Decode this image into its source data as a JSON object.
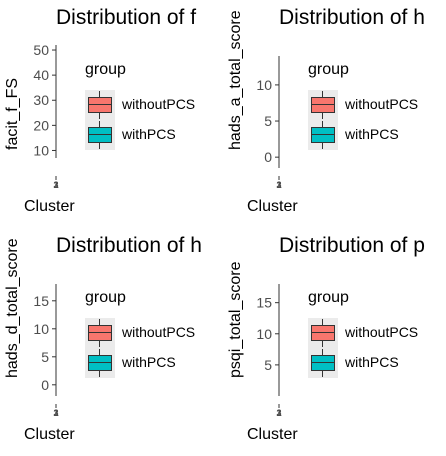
{
  "chart_data": [
    {
      "type": "boxplot",
      "title": "Distribution of f",
      "xlabel": "Cluster",
      "ylabel": "facit_f_FS",
      "ylim": [
        7,
        52
      ],
      "yticks": [
        10,
        20,
        30,
        40,
        50
      ],
      "categories": [
        "1",
        "2",
        "3"
      ],
      "legend": {
        "title": "group",
        "entries": [
          "withoutPCS",
          "withPCS"
        ],
        "position": "right"
      },
      "grid": false
    },
    {
      "type": "boxplot",
      "title": "Distribution of h",
      "xlabel": "Cluster",
      "ylabel": "hads_a_total_score",
      "ylim": [
        -1.5,
        14
      ],
      "yticks": [
        0,
        5,
        10
      ],
      "categories": [
        "1",
        "2",
        "3"
      ],
      "legend": {
        "title": "group",
        "entries": [
          "withoutPCS",
          "withPCS"
        ],
        "position": "right"
      },
      "grid": false
    },
    {
      "type": "boxplot",
      "title": "Distribution of h",
      "xlabel": "Cluster",
      "ylabel": "hads_d_total_score",
      "ylim": [
        -2,
        18
      ],
      "yticks": [
        0,
        5,
        10,
        15
      ],
      "categories": [
        "1",
        "2",
        "3"
      ],
      "legend": {
        "title": "group",
        "entries": [
          "withoutPCS",
          "withPCS"
        ],
        "position": "right"
      },
      "grid": false
    },
    {
      "type": "boxplot",
      "title": "Distribution of p",
      "xlabel": "Cluster",
      "ylabel": "psqi_total_score",
      "ylim": [
        0,
        18
      ],
      "yticks": [
        5,
        10,
        15
      ],
      "categories": [
        "1",
        "2",
        "3"
      ],
      "legend": {
        "title": "group",
        "entries": [
          "withoutPCS",
          "withPCS"
        ],
        "position": "right"
      },
      "grid": false
    }
  ],
  "colors": {
    "withoutPCS": "#f8766d",
    "withPCS": "#00bfc4",
    "axis_text": "#4d4d4d",
    "tick": "#333333"
  }
}
